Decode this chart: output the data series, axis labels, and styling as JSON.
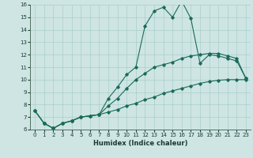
{
  "xlabel": "Humidex (Indice chaleur)",
  "xlim": [
    -0.5,
    23.5
  ],
  "ylim": [
    6,
    16
  ],
  "xticks": [
    0,
    1,
    2,
    3,
    4,
    5,
    6,
    7,
    8,
    9,
    10,
    11,
    12,
    13,
    14,
    15,
    16,
    17,
    18,
    19,
    20,
    21,
    22,
    23
  ],
  "yticks": [
    6,
    7,
    8,
    9,
    10,
    11,
    12,
    13,
    14,
    15,
    16
  ],
  "bg_color": "#cee5e3",
  "grid_color": "#aacfcc",
  "line_color": "#1a6b5a",
  "line1_x": [
    0,
    1,
    2,
    3,
    4,
    5,
    6,
    7,
    8,
    9,
    10,
    11,
    12,
    13,
    14,
    15,
    16,
    17,
    18,
    19,
    20,
    21,
    22,
    23
  ],
  "line1_y": [
    7.5,
    6.5,
    6.1,
    6.5,
    6.7,
    7.0,
    7.1,
    7.2,
    8.5,
    9.4,
    10.4,
    11.0,
    14.3,
    15.5,
    15.8,
    15.0,
    16.3,
    14.9,
    11.3,
    12.0,
    11.9,
    11.7,
    11.5,
    10.1
  ],
  "line2_x": [
    0,
    1,
    2,
    3,
    4,
    5,
    6,
    7,
    8,
    9,
    10,
    11,
    12,
    13,
    14,
    15,
    16,
    17,
    18,
    19,
    20,
    21,
    22,
    23
  ],
  "line2_y": [
    7.5,
    6.5,
    6.1,
    6.5,
    6.7,
    7.0,
    7.1,
    7.2,
    7.9,
    8.5,
    9.3,
    10.0,
    10.5,
    11.0,
    11.2,
    11.4,
    11.7,
    11.9,
    12.0,
    12.1,
    12.1,
    11.9,
    11.7,
    10.1
  ],
  "line3_x": [
    0,
    1,
    2,
    3,
    4,
    5,
    6,
    7,
    8,
    9,
    10,
    11,
    12,
    13,
    14,
    15,
    16,
    17,
    18,
    19,
    20,
    21,
    22,
    23
  ],
  "line3_y": [
    7.5,
    6.5,
    6.1,
    6.5,
    6.7,
    7.0,
    7.1,
    7.2,
    7.4,
    7.6,
    7.9,
    8.1,
    8.4,
    8.6,
    8.9,
    9.1,
    9.3,
    9.5,
    9.7,
    9.85,
    9.95,
    10.0,
    10.0,
    10.0
  ]
}
